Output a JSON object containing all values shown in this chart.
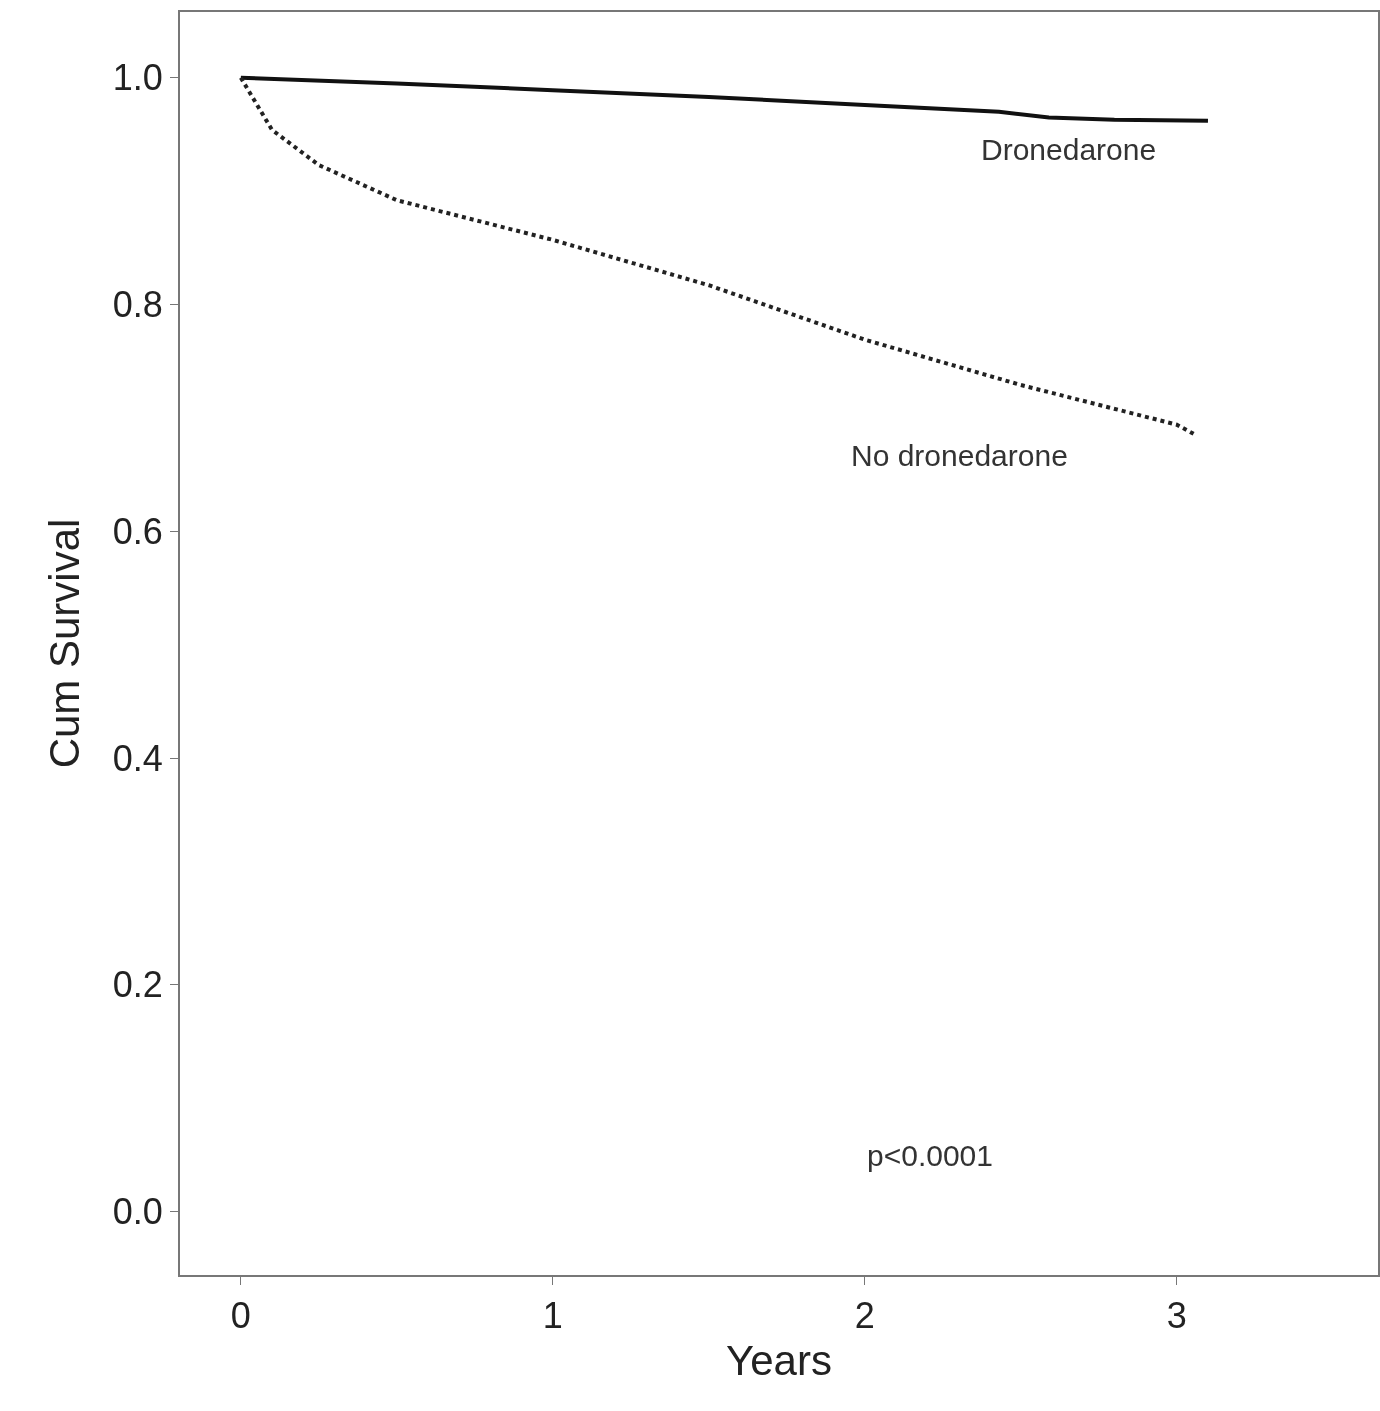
{
  "chart_data": {
    "type": "line",
    "xlabel": "Years",
    "ylabel": "Cum Survival",
    "x": [
      0,
      0.5,
      1,
      1.5,
      2,
      2.43,
      2.59,
      2.8,
      3.1
    ],
    "series": [
      {
        "name": "Dronedarone",
        "color": "#111111",
        "line_style": "solid",
        "values": [
          1.0,
          0.995,
          0.989,
          0.983,
          0.976,
          0.97,
          0.965,
          0.963,
          0.962
        ]
      },
      {
        "name": "No dronedarone",
        "color": "#222222",
        "line_style": "dotted",
        "x": [
          0,
          0.1,
          0.25,
          0.5,
          1,
          1.5,
          2,
          2.5,
          3,
          3.06
        ],
        "values": [
          1.0,
          0.954,
          0.923,
          0.892,
          0.857,
          0.817,
          0.769,
          0.729,
          0.694,
          0.685
        ]
      }
    ],
    "xlim": [
      -0.195,
      3.645
    ],
    "xticks": [
      0,
      1,
      2,
      3
    ],
    "ylim": [
      -0.056,
      1.058
    ],
    "yticks": [
      {
        "value": 0,
        "label": "0.0"
      },
      {
        "value": 0.2,
        "label": "0.2"
      },
      {
        "value": 0.4,
        "label": "0.4"
      },
      {
        "value": 0.6,
        "label": "0.6"
      },
      {
        "value": 0.8,
        "label": "0.8"
      },
      {
        "value": 1,
        "label": "1.0"
      }
    ],
    "grid": false,
    "legend": false,
    "marker": "none",
    "annotations": [
      "p<0.0001"
    ]
  }
}
